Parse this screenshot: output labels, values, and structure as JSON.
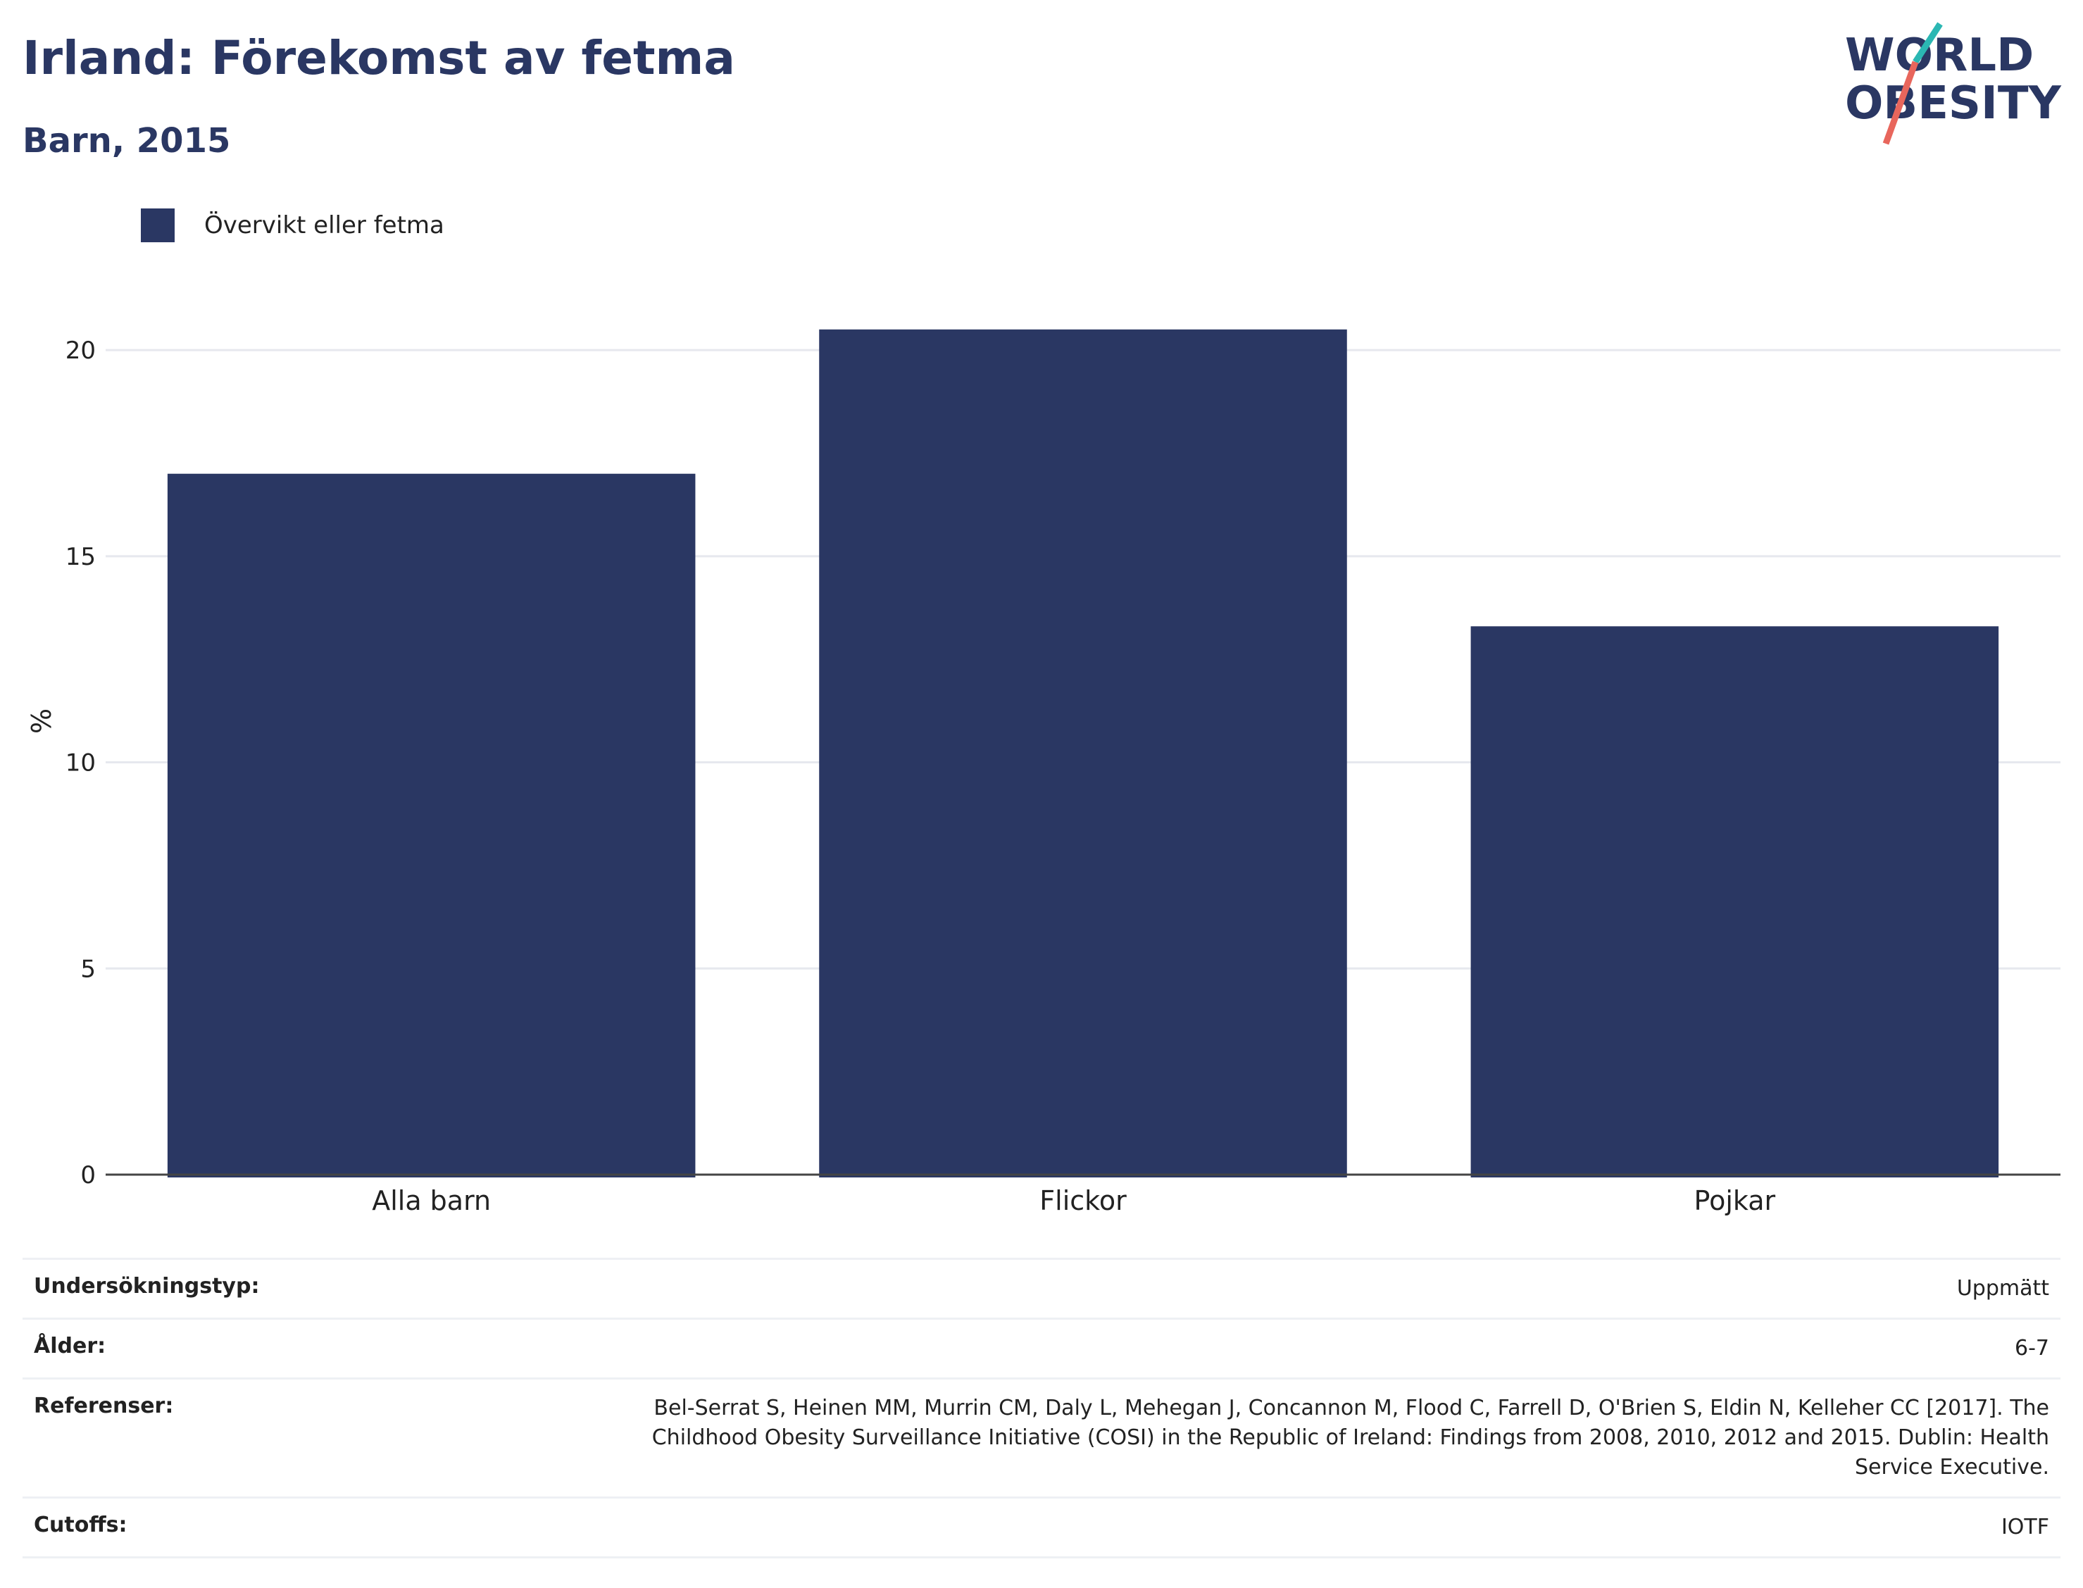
{
  "header": {
    "title": "Irland: Förekomst av fetma",
    "subtitle": "Barn, 2015"
  },
  "logo": {
    "line1": "WORLD",
    "line2": "OBESITY",
    "name": "world-obesity-logo"
  },
  "colors": {
    "bar": "#2a3763",
    "grid": "#e6e8ee",
    "axis": "#444444",
    "logo_teal": "#2bb7b3",
    "logo_coral": "#e8665c"
  },
  "chart_data": {
    "type": "bar",
    "categories": [
      "Alla barn",
      "Flickor",
      "Pojkar"
    ],
    "series": [
      {
        "name": "Övervikt eller fetma",
        "values": [
          17.0,
          20.5,
          13.3
        ]
      }
    ],
    "title": "Irland: Förekomst av fetma",
    "subtitle": "Barn, 2015",
    "xlabel": "",
    "ylabel": "%",
    "ylim": [
      0,
      22
    ],
    "yticks": [
      0,
      5,
      10,
      15,
      20
    ],
    "grid": true,
    "legend_position": "top-left"
  },
  "meta": [
    {
      "key": "Undersökningstyp:",
      "value": "Uppmätt"
    },
    {
      "key": "Ålder:",
      "value": "6-7"
    },
    {
      "key": "Referenser:",
      "value": "Bel-Serrat S, Heinen MM, Murrin CM, Daly L, Mehegan J, Concannon M, Flood C, Farrell D, O'Brien S, Eldin N, Kelleher CC [2017]. The Childhood Obesity Surveillance Initiative (COSI) in the Republic of Ireland: Findings from 2008, 2010, 2012 and 2015. Dublin: Health Service Executive."
    },
    {
      "key": "Cutoffs:",
      "value": "IOTF"
    }
  ]
}
